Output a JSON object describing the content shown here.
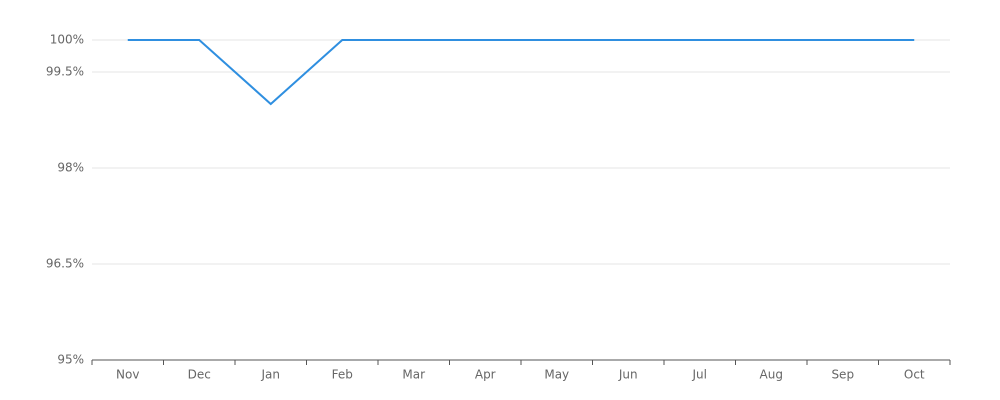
{
  "chart_data": {
    "type": "line",
    "categories": [
      "Nov",
      "Dec",
      "Jan",
      "Feb",
      "Mar",
      "Apr",
      "May",
      "Jun",
      "Jul",
      "Aug",
      "Sep",
      "Oct"
    ],
    "series": [
      {
        "color": "#2f8fe0",
        "values": [
          100,
          100,
          99.0,
          100,
          100,
          100,
          100,
          100,
          100,
          100,
          100,
          100
        ]
      }
    ],
    "ylim": [
      95,
      100
    ],
    "yticks": [
      {
        "value": 95,
        "label": "95%"
      },
      {
        "value": 96.5,
        "label": "96.5%"
      },
      {
        "value": 98,
        "label": "98%"
      },
      {
        "value": 99.5,
        "label": "99.5%"
      },
      {
        "value": 100,
        "label": "100%"
      }
    ],
    "grid": true
  }
}
